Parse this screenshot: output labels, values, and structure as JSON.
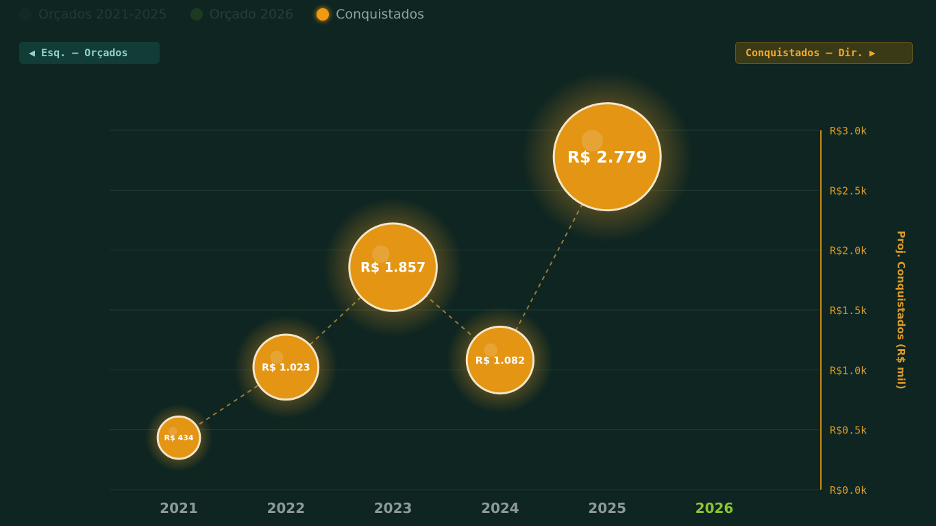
{
  "legend": [
    {
      "label": "Orçados 2021-2025",
      "color": "#1d3b36",
      "active": false
    },
    {
      "label": "Orçado 2026",
      "color": "#2f4a22",
      "active": false
    },
    {
      "label": "Conquistados",
      "color": "#f09a14",
      "active": true
    }
  ],
  "buttons": {
    "left": "◀ Esq. — Orçados",
    "right": "Conquistados — Dir. ▶"
  },
  "chart_data": {
    "type": "scatter",
    "subtype": "bubble",
    "categories": [
      "2021",
      "2022",
      "2023",
      "2024",
      "2025",
      "2026"
    ],
    "highlight_category": "2026",
    "series": [
      {
        "name": "Conquistados",
        "values": [
          434,
          1023,
          1857,
          1082,
          2779,
          null
        ],
        "labels": [
          "R$ 434",
          "R$ 1.023",
          "R$ 1.857",
          "R$ 1.082",
          "R$ 2.779",
          null
        ]
      }
    ],
    "ylabel": "Proj. Conquistados (R$ mil)",
    "yaxis_side": "right",
    "ylim": [
      0,
      3000
    ],
    "yticks": [
      0,
      500,
      1000,
      1500,
      2000,
      2500,
      3000
    ],
    "ytick_labels": [
      "R$0.0k",
      "R$0.5k",
      "R$1.0k",
      "R$1.5k",
      "R$2.0k",
      "R$2.5k",
      "R$3.0k"
    ],
    "grid": true,
    "colors": {
      "bubble": "#e39513",
      "axis": "#c98a1c",
      "tick": "#d99a2a",
      "highlight": "#8dc431",
      "xtick": "#8d9a98"
    }
  }
}
